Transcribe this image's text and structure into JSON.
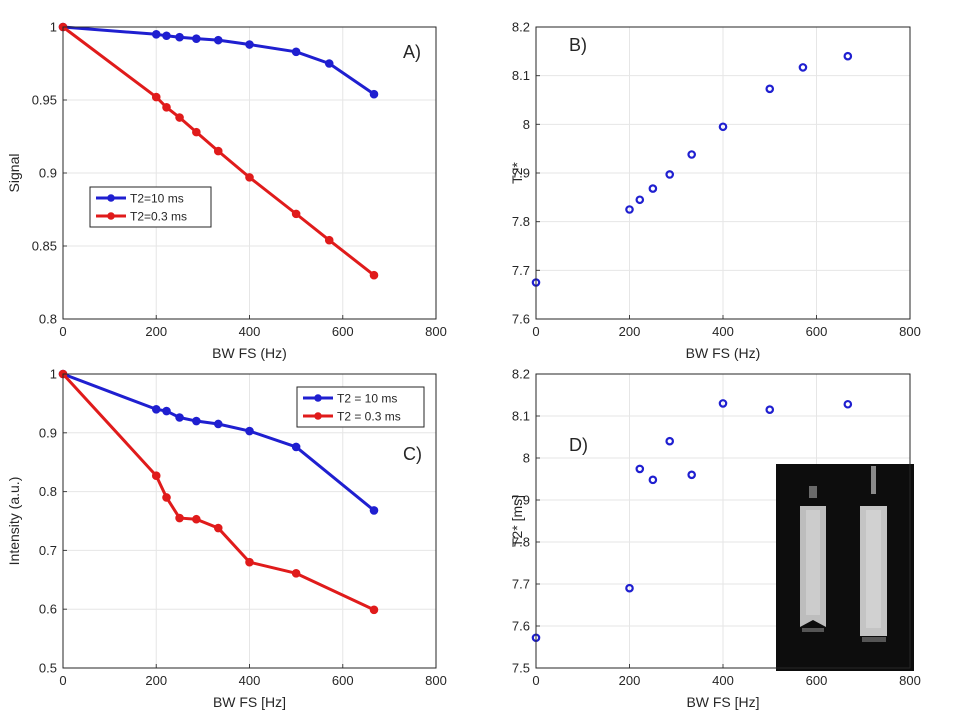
{
  "chart_data": [
    {
      "panel": "A)",
      "type": "line",
      "xlabel": "BW FS (Hz)",
      "ylabel": "Signal",
      "xlim": [
        0,
        800
      ],
      "ylim": [
        0.8,
        1
      ],
      "xticks": [
        "0",
        "200",
        "400",
        "600",
        "800"
      ],
      "yticks": [
        "0.8",
        "0.85",
        "0.9",
        "0.95",
        "1"
      ],
      "grid": true,
      "legend_position": "middle-left",
      "x": [
        0,
        200,
        222,
        250,
        286,
        333,
        400,
        500,
        571,
        667
      ],
      "series": [
        {
          "name": "T2=10 ms",
          "color": "#1f1fd0",
          "values": [
            1.0,
            0.995,
            0.994,
            0.993,
            0.992,
            0.991,
            0.988,
            0.983,
            0.975,
            0.954
          ]
        },
        {
          "name": "T2=0.3 ms",
          "color": "#e01b1b",
          "values": [
            1.0,
            0.952,
            0.945,
            0.938,
            0.928,
            0.915,
            0.897,
            0.872,
            0.854,
            0.83
          ]
        }
      ]
    },
    {
      "panel": "B)",
      "type": "scatter",
      "xlabel": "BW FS (Hz)",
      "ylabel": "T2*",
      "xlim": [
        0,
        800
      ],
      "ylim": [
        7.6,
        8.2
      ],
      "xticks": [
        "0",
        "200",
        "400",
        "600",
        "800"
      ],
      "yticks": [
        "7.6",
        "7.7",
        "7.8",
        "7.9",
        "8",
        "8.1",
        "8.2"
      ],
      "grid": true,
      "x": [
        0,
        200,
        222,
        250,
        286,
        333,
        400,
        500,
        571,
        667
      ],
      "series": [
        {
          "name": "T2*",
          "color": "#1f1fd0",
          "values": [
            7.675,
            7.825,
            7.845,
            7.868,
            7.897,
            7.938,
            7.995,
            8.073,
            8.117,
            8.14
          ]
        }
      ]
    },
    {
      "panel": "C)",
      "type": "line",
      "xlabel": "BW FS [Hz]",
      "ylabel": "Intensity (a.u.)",
      "xlim": [
        0,
        800
      ],
      "ylim": [
        0.5,
        1
      ],
      "xticks": [
        "0",
        "200",
        "400",
        "600",
        "800"
      ],
      "yticks": [
        "0.5",
        "0.6",
        "0.7",
        "0.8",
        "0.9",
        "1"
      ],
      "grid": true,
      "legend_position": "top-right",
      "x": [
        0,
        200,
        222,
        250,
        286,
        333,
        400,
        500,
        667
      ],
      "series": [
        {
          "name": "T2 = 10 ms",
          "color": "#1f1fd0",
          "values": [
            1.0,
            0.94,
            0.937,
            0.926,
            0.92,
            0.915,
            0.903,
            0.876,
            0.768
          ]
        },
        {
          "name": "T2 = 0.3 ms",
          "color": "#e01b1b",
          "values": [
            1.0,
            0.827,
            0.79,
            0.755,
            0.753,
            0.738,
            0.68,
            0.661,
            0.599
          ]
        }
      ]
    },
    {
      "panel": "D)",
      "type": "scatter",
      "xlabel": "BW FS [Hz]",
      "ylabel": "T2* [ms]",
      "xlim": [
        0,
        800
      ],
      "ylim": [
        7.5,
        8.2
      ],
      "xticks": [
        "0",
        "200",
        "400",
        "600",
        "800"
      ],
      "yticks": [
        "7.5",
        "7.6",
        "7.7",
        "7.8",
        "7.9",
        "8",
        "8.1",
        "8.2"
      ],
      "grid": true,
      "x": [
        0,
        200,
        222,
        250,
        286,
        333,
        400,
        500,
        667
      ],
      "series": [
        {
          "name": "T2*",
          "color": "#1f1fd0",
          "values": [
            7.572,
            7.69,
            7.974,
            7.948,
            8.04,
            7.96,
            8.13,
            8.115,
            8.128
          ]
        }
      ],
      "inset": "MR image of two phantom tubes"
    }
  ]
}
